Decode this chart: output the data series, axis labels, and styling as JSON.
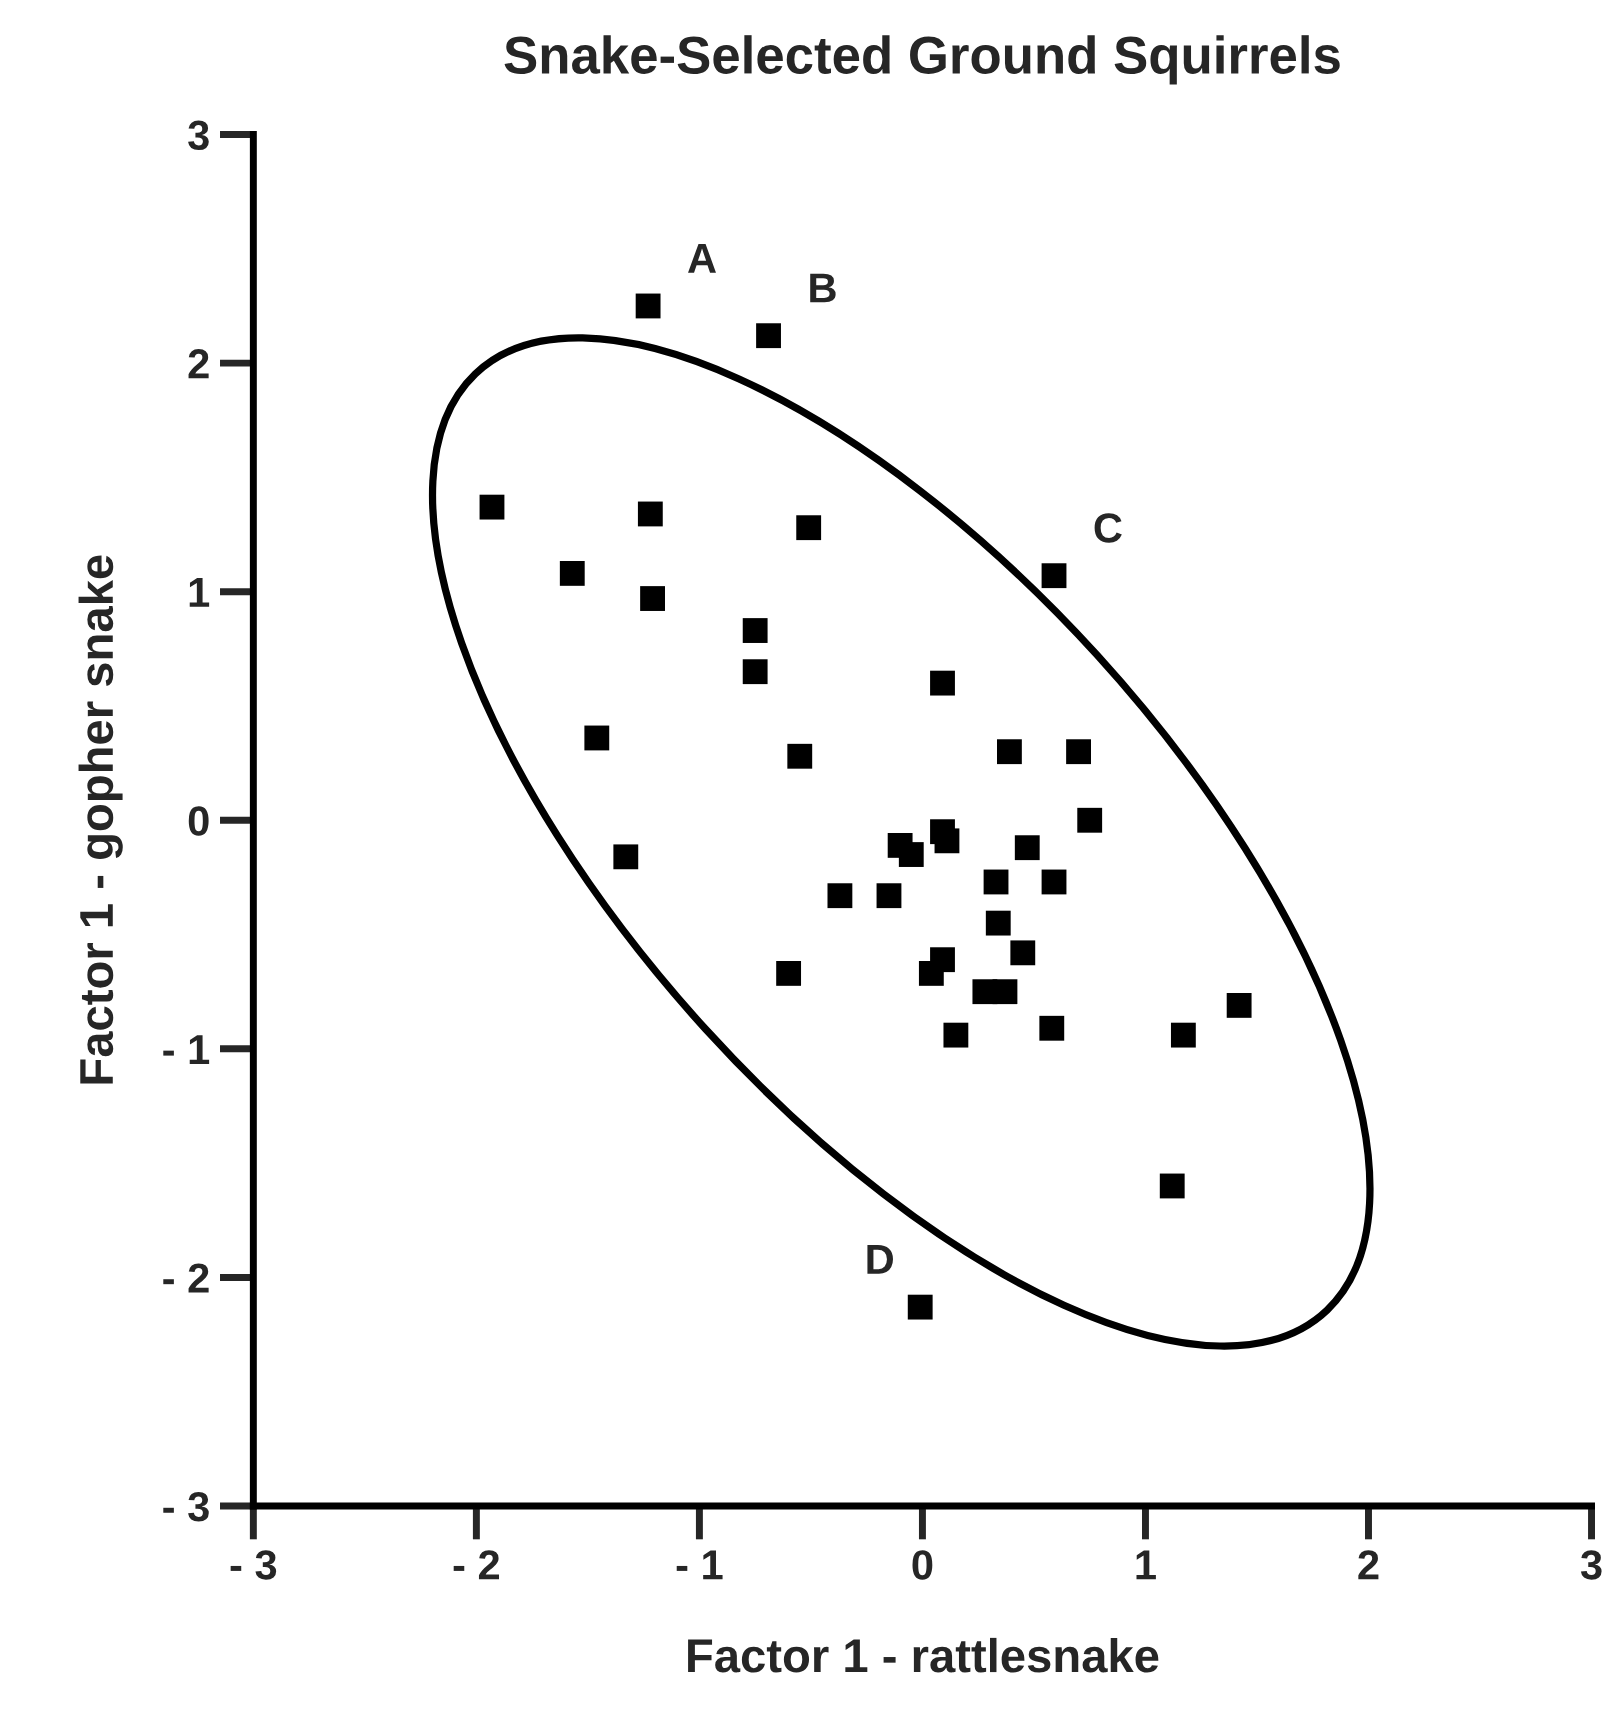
{
  "chart_data": {
    "type": "scatter",
    "title": "Snake-Selected Ground Squirrels",
    "xlabel": "Factor 1 - rattlesnake",
    "ylabel": "Factor 1 - gopher snake",
    "xlim": [
      -3,
      3
    ],
    "ylim": [
      -3,
      3
    ],
    "xticks": [
      {
        "value": -3,
        "label": "- 3"
      },
      {
        "value": -2,
        "label": "- 2"
      },
      {
        "value": -1,
        "label": "- 1"
      },
      0,
      1,
      2,
      3
    ],
    "yticks": [
      {
        "value": -3,
        "label": "- 3"
      },
      {
        "value": -2,
        "label": "- 2"
      },
      {
        "value": -1,
        "label": "- 1"
      },
      0,
      1,
      2,
      3
    ],
    "grid": false,
    "legend": false,
    "marker": "square",
    "series": [
      {
        "color": "#000000",
        "x": [
          -1.23,
          -0.69,
          0.59,
          -0.01,
          -1.93,
          -1.22,
          -0.51,
          -1.57,
          -1.21,
          -0.75,
          -0.75,
          -1.46,
          -0.55,
          -1.33,
          -0.1,
          -0.05,
          0.09,
          0.39,
          0.7,
          0.75,
          0.09,
          0.11,
          0.47,
          -0.37,
          -0.15,
          0.33,
          0.59,
          0.34,
          0.45,
          0.09,
          0.04,
          0.28,
          0.37,
          -0.6,
          0.15,
          0.58,
          1.17,
          1.42,
          1.12
        ],
        "values": [
          2.25,
          2.12,
          1.07,
          -2.13,
          1.37,
          1.34,
          1.28,
          1.08,
          0.97,
          0.83,
          0.65,
          0.36,
          0.28,
          -0.16,
          -0.11,
          -0.15,
          0.6,
          0.3,
          0.3,
          0.0,
          -0.05,
          -0.09,
          -0.12,
          -0.33,
          -0.33,
          -0.27,
          -0.27,
          -0.45,
          -0.58,
          -0.61,
          -0.67,
          -0.75,
          -0.75,
          -0.67,
          -0.94,
          -0.91,
          -0.94,
          -0.81,
          -1.6
        ]
      }
    ],
    "annotations": [
      {
        "text": "A",
        "x": -1.23,
        "y": 2.25
      },
      {
        "text": "B",
        "x": -0.69,
        "y": 2.12
      },
      {
        "text": "C",
        "x": 0.59,
        "y": 1.07
      },
      {
        "text": "D",
        "x": -0.01,
        "y": -2.13
      }
    ]
  }
}
